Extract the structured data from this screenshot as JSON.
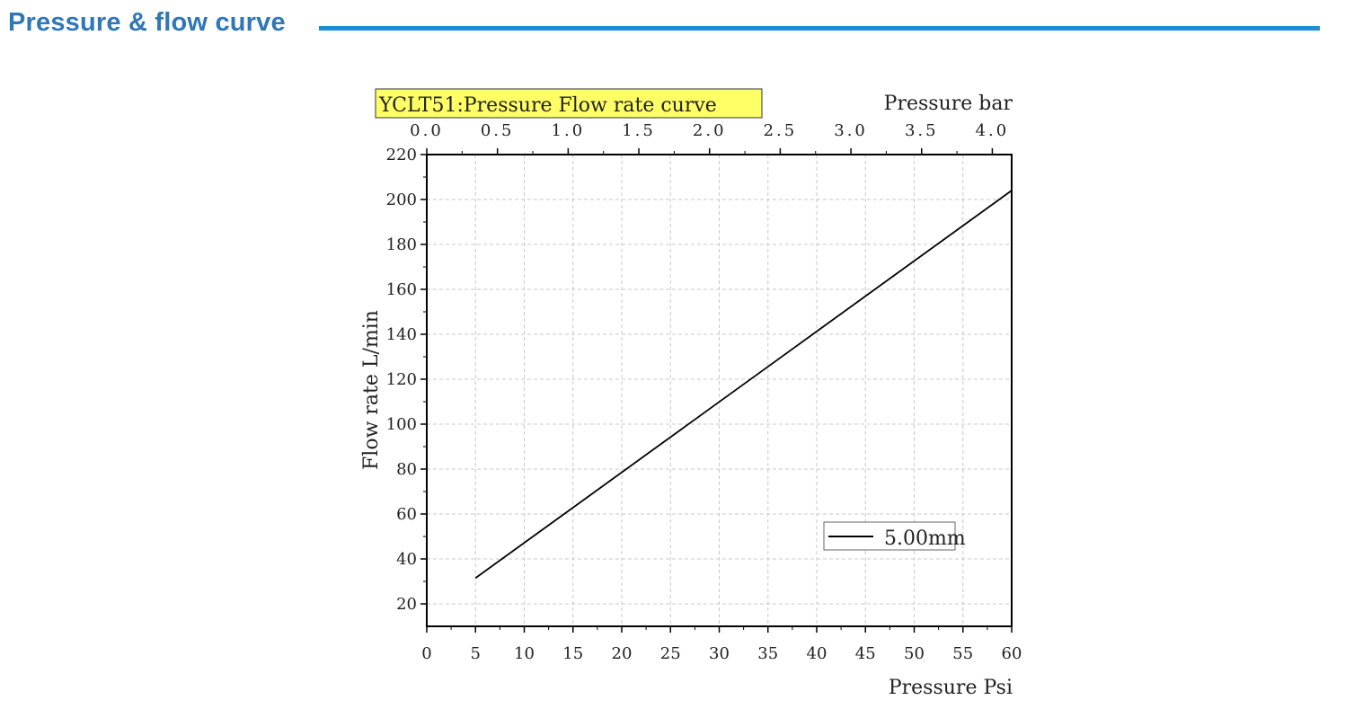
{
  "header": {
    "title": "Pressure & flow curve",
    "accent_color": "#1a90d2",
    "title_color": "#2f77b6"
  },
  "chart_data": {
    "type": "line",
    "title": "YCLT51:Pressure Flow rate curve",
    "title_highlight_color": "#ffff66",
    "xlabel": "Pressure Psi",
    "ylabel": "Flow rate L/min",
    "x2label": "Pressure bar",
    "xlim": [
      0,
      60
    ],
    "ylim": [
      10,
      220
    ],
    "x2lim": [
      0,
      4.137
    ],
    "xticks": [
      0,
      5,
      10,
      15,
      20,
      25,
      30,
      35,
      40,
      45,
      50,
      55,
      60
    ],
    "xtick_labels": [
      "0",
      "5",
      "10",
      "15",
      "20",
      "25",
      "30",
      "35",
      "40",
      "45",
      "50",
      "55",
      "60"
    ],
    "yticks": [
      20,
      40,
      60,
      80,
      100,
      120,
      140,
      160,
      180,
      200,
      220
    ],
    "ytick_labels": [
      "20",
      "40",
      "60",
      "80",
      "100",
      "120",
      "140",
      "160",
      "180",
      "200",
      "220"
    ],
    "x2ticks": [
      0.0,
      0.5,
      1.0,
      1.5,
      2.0,
      2.5,
      3.0,
      3.5,
      4.0
    ],
    "x2tick_labels": [
      "0.0",
      "0.5",
      "1.0",
      "1.5",
      "2.0",
      "2.5",
      "3.0",
      "3.5",
      "4.0"
    ],
    "grid": true,
    "legend_position": "bottom-right",
    "series": [
      {
        "name": "5.00mm",
        "color": "#000000",
        "x": [
          5,
          60
        ],
        "y": [
          31.5,
          204
        ]
      }
    ]
  }
}
